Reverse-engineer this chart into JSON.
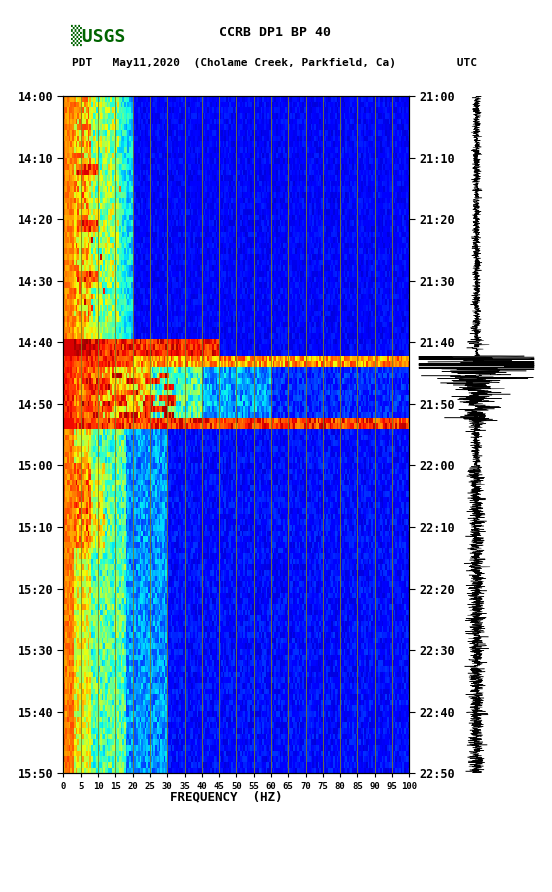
{
  "title_line1": "CCRB DP1 BP 40",
  "title_line2_pdt": "PDT   May11,2020  (Cholame Creek, Parkfield, Ca)         UTC",
  "xlabel": "FREQUENCY  (HZ)",
  "freq_ticks": [
    0,
    5,
    10,
    15,
    20,
    25,
    30,
    35,
    40,
    45,
    50,
    55,
    60,
    65,
    70,
    75,
    80,
    85,
    90,
    95,
    100
  ],
  "time_labels_left": [
    "14:00",
    "14:10",
    "14:20",
    "14:30",
    "14:40",
    "14:50",
    "15:00",
    "15:10",
    "15:20",
    "15:30",
    "15:40",
    "15:50"
  ],
  "time_labels_right": [
    "21:00",
    "21:10",
    "21:20",
    "21:30",
    "21:40",
    "21:50",
    "22:00",
    "22:10",
    "22:20",
    "22:30",
    "22:40",
    "22:50"
  ],
  "freq_lines": [
    5,
    10,
    15,
    20,
    25,
    30,
    35,
    40,
    45,
    50,
    55,
    60,
    65,
    70,
    75,
    80,
    85,
    90,
    95
  ],
  "n_time": 120,
  "n_freq": 200,
  "background_color": "#ffffff",
  "colormap": "jet",
  "fig_width": 5.52,
  "fig_height": 8.92,
  "usgs_color": "#006400",
  "freq_line_color": "#7f7f20",
  "waveform_color": "#000000"
}
